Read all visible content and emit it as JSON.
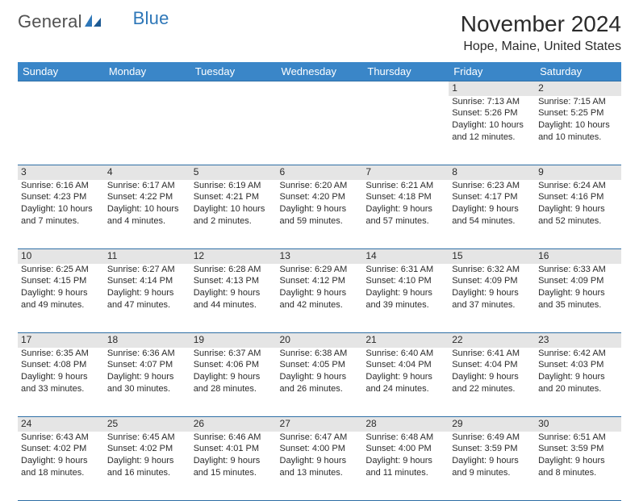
{
  "logo": {
    "text_a": "General",
    "text_b": "Blue"
  },
  "title": "November 2024",
  "location": "Hope, Maine, United States",
  "weekdays": [
    "Sunday",
    "Monday",
    "Tuesday",
    "Wednesday",
    "Thursday",
    "Friday",
    "Saturday"
  ],
  "colors": {
    "accent": "#3a86c8",
    "border": "#2e6ea5",
    "daynum_bg": "#e5e5e5",
    "text": "#2b2b2b",
    "logo_gray": "#525252"
  },
  "weeks": [
    [
      null,
      null,
      null,
      null,
      null,
      {
        "n": "1",
        "sr": "Sunrise: 7:13 AM",
        "ss": "Sunset: 5:26 PM",
        "d1": "Daylight: 10 hours",
        "d2": "and 12 minutes."
      },
      {
        "n": "2",
        "sr": "Sunrise: 7:15 AM",
        "ss": "Sunset: 5:25 PM",
        "d1": "Daylight: 10 hours",
        "d2": "and 10 minutes."
      }
    ],
    [
      {
        "n": "3",
        "sr": "Sunrise: 6:16 AM",
        "ss": "Sunset: 4:23 PM",
        "d1": "Daylight: 10 hours",
        "d2": "and 7 minutes."
      },
      {
        "n": "4",
        "sr": "Sunrise: 6:17 AM",
        "ss": "Sunset: 4:22 PM",
        "d1": "Daylight: 10 hours",
        "d2": "and 4 minutes."
      },
      {
        "n": "5",
        "sr": "Sunrise: 6:19 AM",
        "ss": "Sunset: 4:21 PM",
        "d1": "Daylight: 10 hours",
        "d2": "and 2 minutes."
      },
      {
        "n": "6",
        "sr": "Sunrise: 6:20 AM",
        "ss": "Sunset: 4:20 PM",
        "d1": "Daylight: 9 hours",
        "d2": "and 59 minutes."
      },
      {
        "n": "7",
        "sr": "Sunrise: 6:21 AM",
        "ss": "Sunset: 4:18 PM",
        "d1": "Daylight: 9 hours",
        "d2": "and 57 minutes."
      },
      {
        "n": "8",
        "sr": "Sunrise: 6:23 AM",
        "ss": "Sunset: 4:17 PM",
        "d1": "Daylight: 9 hours",
        "d2": "and 54 minutes."
      },
      {
        "n": "9",
        "sr": "Sunrise: 6:24 AM",
        "ss": "Sunset: 4:16 PM",
        "d1": "Daylight: 9 hours",
        "d2": "and 52 minutes."
      }
    ],
    [
      {
        "n": "10",
        "sr": "Sunrise: 6:25 AM",
        "ss": "Sunset: 4:15 PM",
        "d1": "Daylight: 9 hours",
        "d2": "and 49 minutes."
      },
      {
        "n": "11",
        "sr": "Sunrise: 6:27 AM",
        "ss": "Sunset: 4:14 PM",
        "d1": "Daylight: 9 hours",
        "d2": "and 47 minutes."
      },
      {
        "n": "12",
        "sr": "Sunrise: 6:28 AM",
        "ss": "Sunset: 4:13 PM",
        "d1": "Daylight: 9 hours",
        "d2": "and 44 minutes."
      },
      {
        "n": "13",
        "sr": "Sunrise: 6:29 AM",
        "ss": "Sunset: 4:12 PM",
        "d1": "Daylight: 9 hours",
        "d2": "and 42 minutes."
      },
      {
        "n": "14",
        "sr": "Sunrise: 6:31 AM",
        "ss": "Sunset: 4:10 PM",
        "d1": "Daylight: 9 hours",
        "d2": "and 39 minutes."
      },
      {
        "n": "15",
        "sr": "Sunrise: 6:32 AM",
        "ss": "Sunset: 4:09 PM",
        "d1": "Daylight: 9 hours",
        "d2": "and 37 minutes."
      },
      {
        "n": "16",
        "sr": "Sunrise: 6:33 AM",
        "ss": "Sunset: 4:09 PM",
        "d1": "Daylight: 9 hours",
        "d2": "and 35 minutes."
      }
    ],
    [
      {
        "n": "17",
        "sr": "Sunrise: 6:35 AM",
        "ss": "Sunset: 4:08 PM",
        "d1": "Daylight: 9 hours",
        "d2": "and 33 minutes."
      },
      {
        "n": "18",
        "sr": "Sunrise: 6:36 AM",
        "ss": "Sunset: 4:07 PM",
        "d1": "Daylight: 9 hours",
        "d2": "and 30 minutes."
      },
      {
        "n": "19",
        "sr": "Sunrise: 6:37 AM",
        "ss": "Sunset: 4:06 PM",
        "d1": "Daylight: 9 hours",
        "d2": "and 28 minutes."
      },
      {
        "n": "20",
        "sr": "Sunrise: 6:38 AM",
        "ss": "Sunset: 4:05 PM",
        "d1": "Daylight: 9 hours",
        "d2": "and 26 minutes."
      },
      {
        "n": "21",
        "sr": "Sunrise: 6:40 AM",
        "ss": "Sunset: 4:04 PM",
        "d1": "Daylight: 9 hours",
        "d2": "and 24 minutes."
      },
      {
        "n": "22",
        "sr": "Sunrise: 6:41 AM",
        "ss": "Sunset: 4:04 PM",
        "d1": "Daylight: 9 hours",
        "d2": "and 22 minutes."
      },
      {
        "n": "23",
        "sr": "Sunrise: 6:42 AM",
        "ss": "Sunset: 4:03 PM",
        "d1": "Daylight: 9 hours",
        "d2": "and 20 minutes."
      }
    ],
    [
      {
        "n": "24",
        "sr": "Sunrise: 6:43 AM",
        "ss": "Sunset: 4:02 PM",
        "d1": "Daylight: 9 hours",
        "d2": "and 18 minutes."
      },
      {
        "n": "25",
        "sr": "Sunrise: 6:45 AM",
        "ss": "Sunset: 4:02 PM",
        "d1": "Daylight: 9 hours",
        "d2": "and 16 minutes."
      },
      {
        "n": "26",
        "sr": "Sunrise: 6:46 AM",
        "ss": "Sunset: 4:01 PM",
        "d1": "Daylight: 9 hours",
        "d2": "and 15 minutes."
      },
      {
        "n": "27",
        "sr": "Sunrise: 6:47 AM",
        "ss": "Sunset: 4:00 PM",
        "d1": "Daylight: 9 hours",
        "d2": "and 13 minutes."
      },
      {
        "n": "28",
        "sr": "Sunrise: 6:48 AM",
        "ss": "Sunset: 4:00 PM",
        "d1": "Daylight: 9 hours",
        "d2": "and 11 minutes."
      },
      {
        "n": "29",
        "sr": "Sunrise: 6:49 AM",
        "ss": "Sunset: 3:59 PM",
        "d1": "Daylight: 9 hours",
        "d2": "and 9 minutes."
      },
      {
        "n": "30",
        "sr": "Sunrise: 6:51 AM",
        "ss": "Sunset: 3:59 PM",
        "d1": "Daylight: 9 hours",
        "d2": "and 8 minutes."
      }
    ]
  ]
}
